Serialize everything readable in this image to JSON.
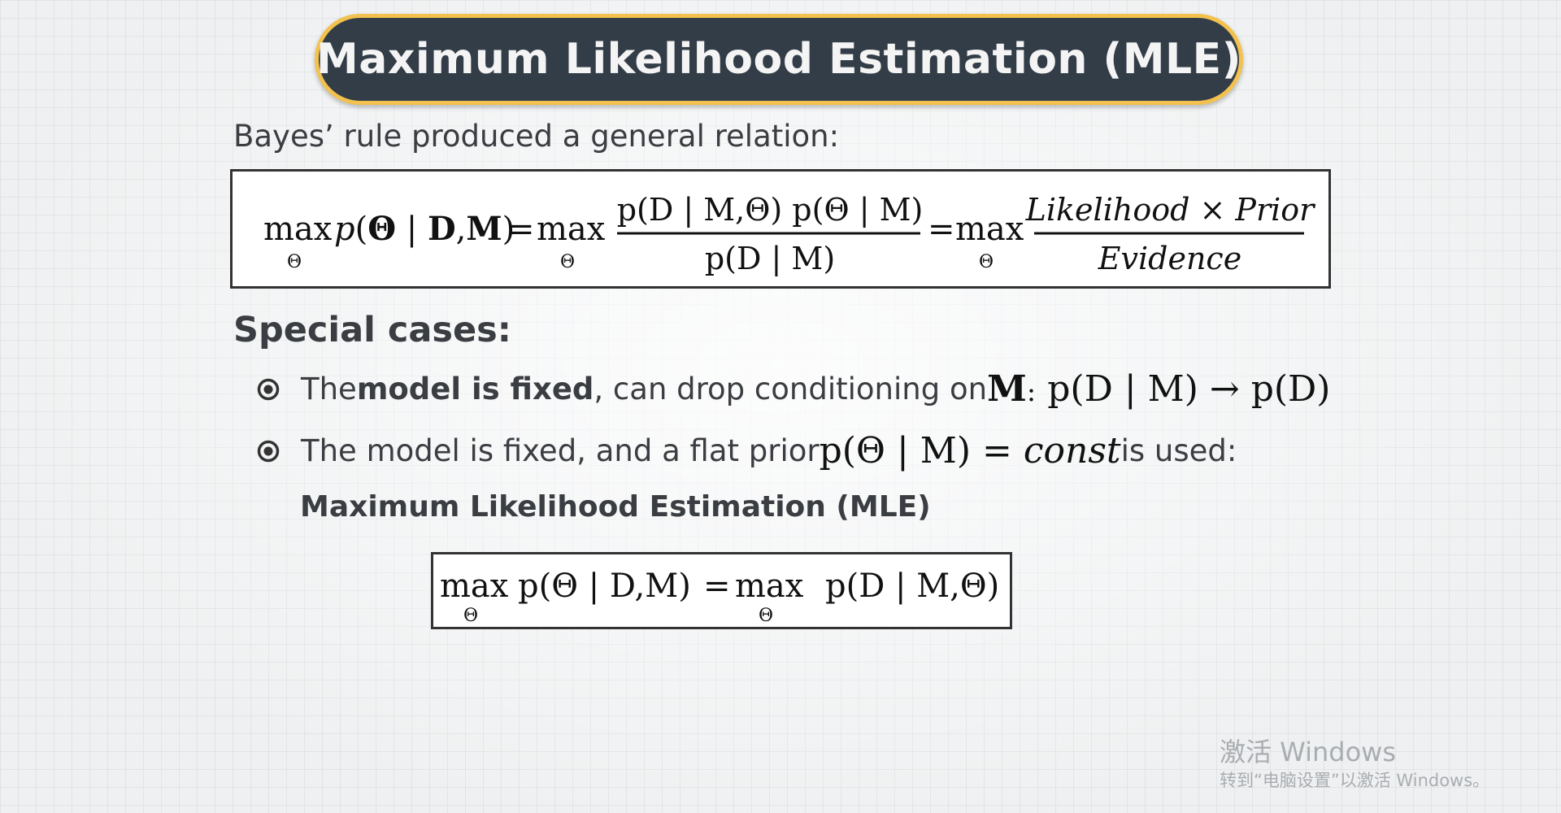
{
  "title": "Maximum Likelihood Estimation (MLE)",
  "intro": "Bayes’ rule produced a general relation:",
  "formula_main": {
    "max": "max",
    "theta_sub": "Θ",
    "lhs_p": "p",
    "lhs_open": "(",
    "lhs_theta": "Θ",
    "lhs_bar": " | ",
    "lhs_d": "D",
    "lhs_comma": ",",
    "lhs_m": "M",
    "lhs_close": ")",
    "equals": "=",
    "num_text": "p(D | M,Θ) p(Θ | M)",
    "den_text": "p(D | M)",
    "likelihood_prior": "Likelihood × Prior",
    "evidence": "Evidence"
  },
  "special_cases": {
    "heading": "Special cases:",
    "items": [
      {
        "pre": "The ",
        "bold": "model is fixed",
        "post": ", can drop conditioning on ",
        "math_m": "M",
        "math_colon": ":",
        "math_expr": " p(D | M) → p(D)"
      },
      {
        "text": "The model is fixed, and a flat prior ",
        "math_expr": "p(Θ | M) = ",
        "math_const": "const",
        "post": " is used:"
      }
    ],
    "mle_label": "Maximum Likelihood Estimation (MLE)"
  },
  "formula_mle": {
    "max": "max",
    "theta_sub": "Θ",
    "lhs": "p(Θ | D,M)",
    "equals": "=",
    "rhs": "p(D | M,Θ)"
  },
  "watermark": {
    "title": "激活 Windows",
    "subtitle": "转到“电脑设置”以激活 Windows。"
  },
  "colors": {
    "title_bg": "#333d47",
    "title_border": "#f2c14e",
    "title_text": "#f4f4f4",
    "body_text": "#3a3d41",
    "math_text": "#111111"
  },
  "icons": {
    "bullet": "radio-bullet-icon"
  }
}
